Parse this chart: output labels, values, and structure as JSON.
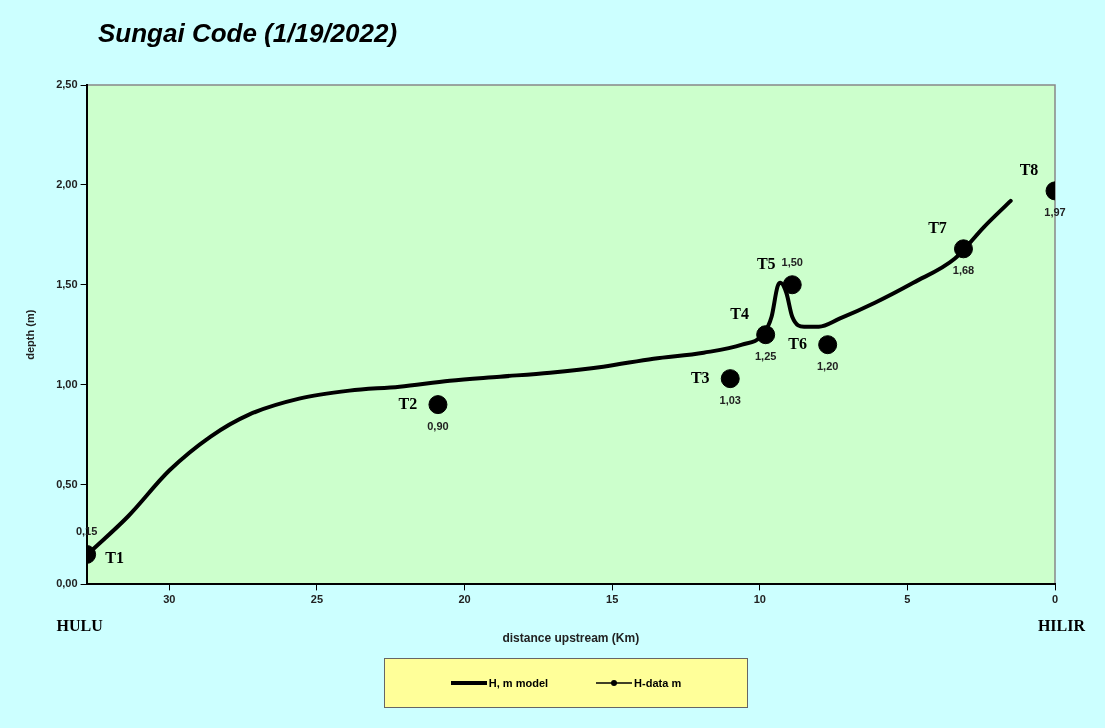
{
  "chart_data": {
    "type": "line",
    "title": "Sungai Code (1/19/2022)",
    "xlabel": "distance upstream (Km)",
    "ylabel": "depth (m)",
    "xlim": [
      32.8,
      0
    ],
    "xticks": [
      30,
      25,
      20,
      15,
      10,
      5,
      0
    ],
    "ylim": [
      0,
      2.5
    ],
    "yticks": [
      {
        "value": 0,
        "label": "0,00"
      },
      {
        "value": 0.5,
        "label": "0,50"
      },
      {
        "value": 1,
        "label": "1,00"
      },
      {
        "value": 1.5,
        "label": "1,50"
      },
      {
        "value": 2,
        "label": "2,00"
      },
      {
        "value": 2.5,
        "label": "2,50"
      }
    ],
    "grid": false,
    "legend": "bottom",
    "series": [
      {
        "name": "H, m model",
        "color": "#000000",
        "marker": "none",
        "x": [
          32.7,
          31.4,
          30,
          28.6,
          27.3,
          25.6,
          23.9,
          22.2,
          20.5,
          18.8,
          17.1,
          15.3,
          13.6,
          11.9,
          10.6,
          9.9,
          9.6,
          9.4,
          9.3,
          9.1,
          8.9,
          8.5,
          8.0,
          7.3,
          6.1,
          4.8,
          3.4,
          2.4,
          1.5
        ],
        "values": [
          0.16,
          0.34,
          0.57,
          0.74,
          0.85,
          0.93,
          0.97,
          0.99,
          1.02,
          1.04,
          1.06,
          1.09,
          1.13,
          1.16,
          1.2,
          1.25,
          1.34,
          1.49,
          1.51,
          1.46,
          1.34,
          1.29,
          1.29,
          1.33,
          1.41,
          1.51,
          1.63,
          1.79,
          1.92
        ]
      },
      {
        "name": "H-data m",
        "type": "scatter",
        "color": "#000000",
        "marker": "circle",
        "x": [
          32.8,
          20.9,
          11,
          9.8,
          8.9,
          7.7,
          3.1,
          0
        ],
        "values": [
          0.15,
          0.9,
          1.03,
          1.25,
          1.5,
          1.2,
          1.68,
          1.97
        ],
        "value_labels": [
          "0,15",
          "0,90",
          "1,03",
          "1,25",
          "1,50",
          "1,20",
          "1,68",
          "1,97"
        ]
      }
    ],
    "annotations": [
      {
        "text": "T1",
        "x": 32.8,
        "y": 0.15
      },
      {
        "text": "T2",
        "x": 20.9,
        "y": 0.9
      },
      {
        "text": "T3",
        "x": 11,
        "y": 1.03
      },
      {
        "text": "T4",
        "x": 9.8,
        "y": 1.25
      },
      {
        "text": "T5",
        "x": 8.9,
        "y": 1.5
      },
      {
        "text": "T6",
        "x": 7.7,
        "y": 1.2
      },
      {
        "text": "T7",
        "x": 3.1,
        "y": 1.68
      },
      {
        "text": "T8",
        "x": 0,
        "y": 1.97
      },
      "HULU",
      "HILIR"
    ]
  }
}
